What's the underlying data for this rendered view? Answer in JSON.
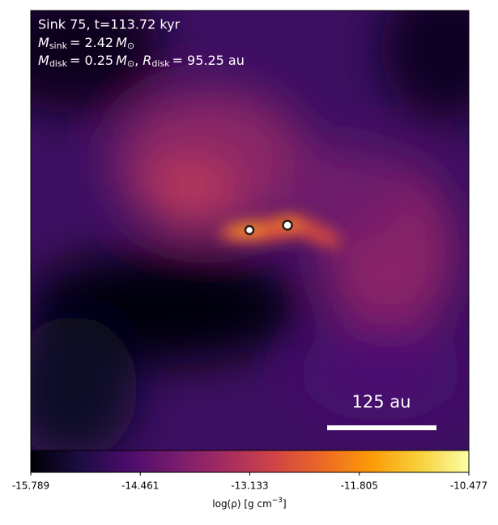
{
  "chart_data": {
    "type": "image",
    "title": "Sink 75, t=113.72 kyr",
    "annotations": {
      "sink_mass": {
        "symbol": "M",
        "sub": "sink",
        "value": "= 2.42",
        "unit": "M",
        "unit_sub": "⊙"
      },
      "disk_mass": {
        "symbol": "M",
        "sub": "disk",
        "value": "= 0.25",
        "unit": "M",
        "unit_sub": "⊙"
      },
      "disk_radius": {
        "symbol": "R",
        "sub": "disk",
        "value": "= 95.25 au"
      },
      "scale_bar": "125 au"
    },
    "colorbar": {
      "label": "log(ρ) [g cm",
      "label_sup": "−3",
      "label_end": "]",
      "xlim": [
        -15.789,
        -10.477
      ],
      "xticks": [
        -15.789,
        -14.461,
        -13.133,
        -11.805,
        -10.477
      ],
      "colormap": [
        "#000004",
        "#1b0c41",
        "#4a0c6b",
        "#781c6d",
        "#a52c60",
        "#cf4446",
        "#ed6925",
        "#fb9b06",
        "#f7d13d",
        "#fcffa4"
      ]
    }
  }
}
